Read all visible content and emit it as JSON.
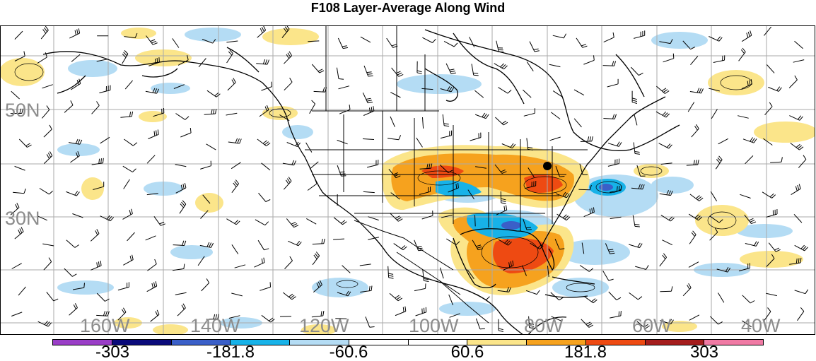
{
  "title": "F108 Layer-Average Along Wind",
  "latitude_labels": [
    "50N",
    "30N"
  ],
  "longitude_labels": [
    "160W",
    "140W",
    "120W",
    "100W",
    "80W",
    "60W",
    "40W"
  ],
  "colorbar": {
    "colors": [
      "#9a3ec7",
      "#0a0a7a",
      "#3a5fc8",
      "#17b2e8",
      "#b4dcf4",
      "#ffffff",
      "#ffffff",
      "#fbe58a",
      "#f6a21e",
      "#ee4a12",
      "#a51d1d",
      "#f07aa4"
    ],
    "labels": [
      "-303",
      "-181.8",
      "-60.6",
      "60.6",
      "181.8",
      "303"
    ]
  },
  "colors": {
    "light_blue": "#b4dcf4",
    "mid_blue": "#17b2e8",
    "dark_blue": "#3a5fc8",
    "light_yellow": "#fbe58a",
    "orange": "#f6a21e",
    "red_orange": "#ee4a12",
    "grid": "#aaaaaa",
    "label_gray": "#8c8c8c"
  }
}
